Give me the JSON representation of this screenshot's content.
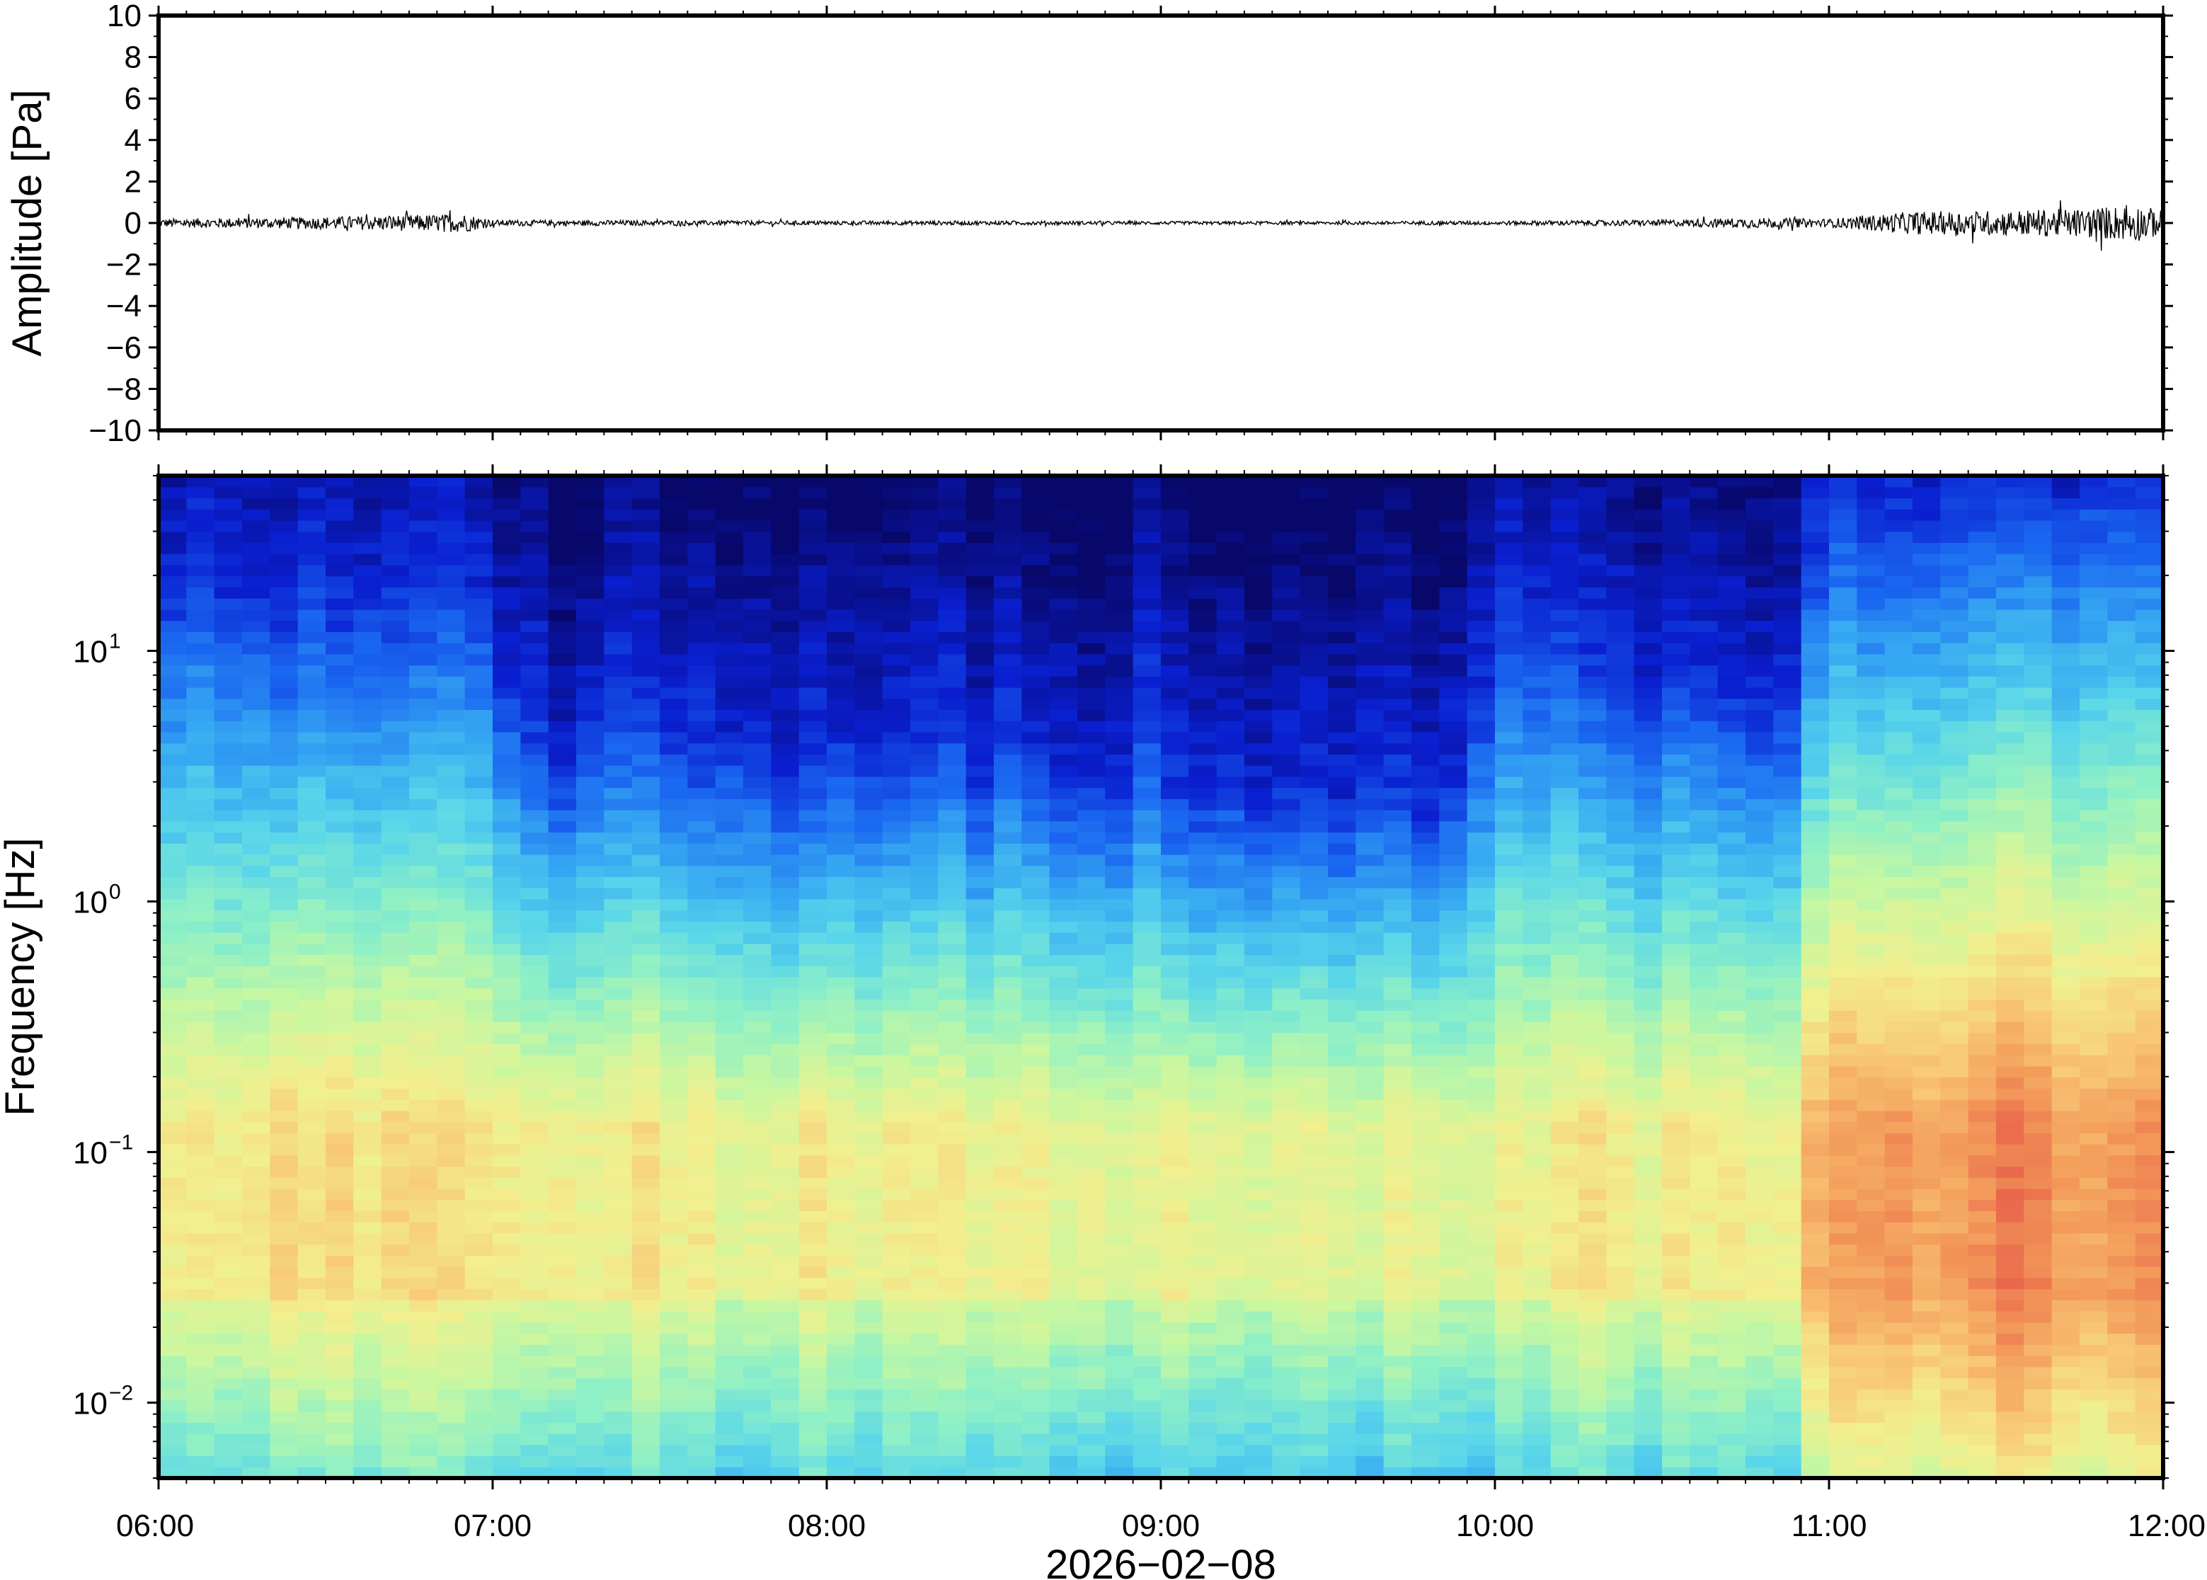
{
  "chart_data": [
    {
      "type": "line",
      "ylabel": "Amplitude [Pa]",
      "ylim": [
        -10,
        10
      ],
      "yticks": [
        10,
        8,
        6,
        4,
        2,
        0,
        -2,
        -4,
        -6,
        -8,
        -10
      ],
      "ytick_labels": [
        "10",
        "8",
        "6",
        "4",
        "2",
        "0",
        "−2",
        "−4",
        "−6",
        "−8",
        "−10"
      ],
      "x_range": [
        "06:00",
        "12:00"
      ],
      "series": [
        {
          "values_note_time": [
            "06:00",
            "06:30",
            "06:55",
            "07:00",
            "07:30",
            "08:00",
            "08:30",
            "09:00",
            "09:30",
            "10:00",
            "10:30",
            "10:45",
            "11:00",
            "11:15",
            "11:30",
            "11:45",
            "11:55",
            "12:00"
          ],
          "envelope_pa": [
            0.2,
            0.3,
            0.45,
            0.15,
            0.12,
            0.1,
            0.1,
            0.08,
            0.08,
            0.1,
            0.15,
            0.25,
            0.2,
            0.55,
            0.6,
            0.7,
            0.9,
            0.6
          ]
        }
      ],
      "grid": false
    },
    {
      "type": "heatmap",
      "ylabel": "Frequency [Hz]",
      "yscale": "log",
      "ylim": [
        0.005,
        50
      ],
      "yticks": [
        0.01,
        0.1,
        1,
        10
      ],
      "ytick_labels": [
        {
          "base": "10",
          "exp": "−2"
        },
        {
          "base": "10",
          "exp": "−1"
        },
        {
          "base": "10",
          "exp": "0"
        },
        {
          "base": "10",
          "exp": "1"
        }
      ],
      "xlabel": "2026−02−08",
      "xticks": [
        "06:00",
        "07:00",
        "08:00",
        "09:00",
        "10:00",
        "11:00",
        "12:00"
      ],
      "colormap": [
        "#08086b",
        "#0a1fd0",
        "#1a66f0",
        "#35a6f2",
        "#5ad6ea",
        "#8ef0c6",
        "#c9f7a0",
        "#f2ef8e",
        "#f8c777",
        "#f39b5a",
        "#e8634a"
      ],
      "time_columns": [
        "06:00",
        "06:30",
        "07:00",
        "07:05",
        "07:30",
        "08:00",
        "08:30",
        "09:00",
        "09:30",
        "09:55",
        "10:00",
        "10:30",
        "10:55",
        "11:00",
        "11:30",
        "12:00"
      ],
      "edge_frequency_hz": [
        18,
        16,
        15,
        5,
        4.5,
        4,
        4,
        3.5,
        3,
        2.5,
        12,
        8,
        6,
        40,
        45,
        45
      ],
      "low_frequency_peak_level": [
        0.72,
        0.74,
        0.75,
        0.7,
        0.69,
        0.68,
        0.68,
        0.66,
        0.66,
        0.64,
        0.68,
        0.7,
        0.72,
        0.88,
        0.92,
        0.9
      ],
      "grid": false
    }
  ]
}
